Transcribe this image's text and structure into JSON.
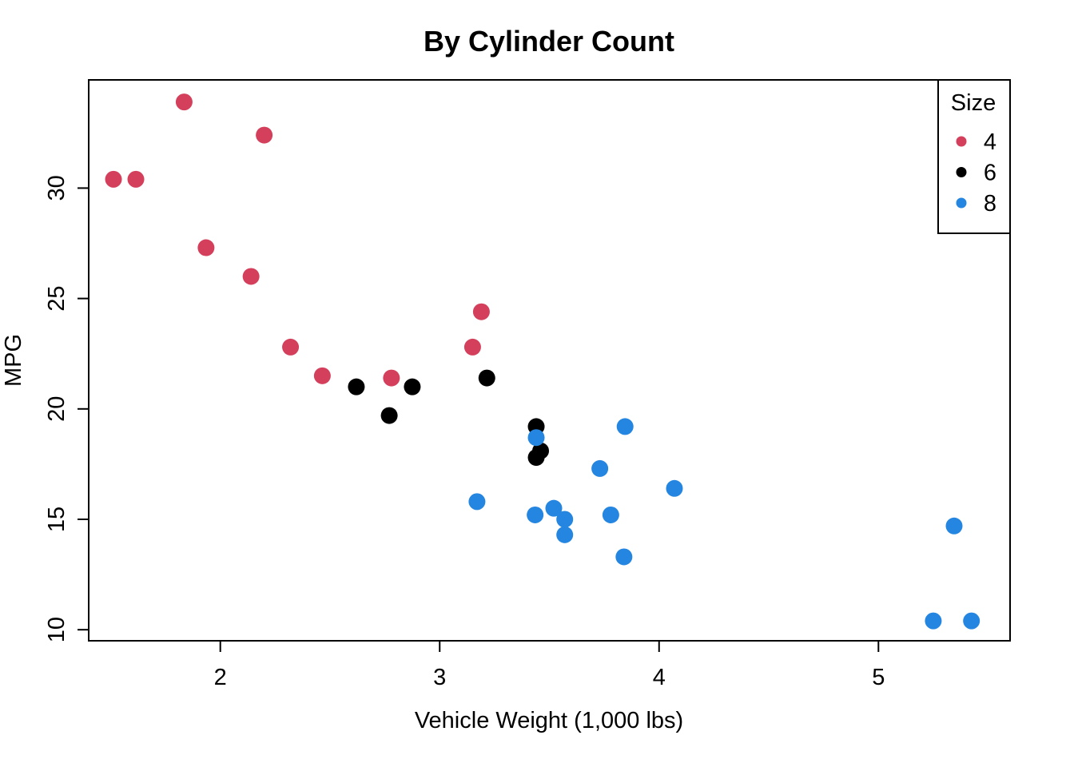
{
  "chart_data": {
    "type": "scatter",
    "title": "By Cylinder Count",
    "xlabel": "Vehicle Weight (1,000 lbs)",
    "ylabel": "MPG",
    "xlim": [
      1.4,
      5.6
    ],
    "ylim": [
      9.5,
      34.9
    ],
    "xticks": [
      "2",
      "3",
      "4",
      "5"
    ],
    "yticks": [
      "10",
      "15",
      "20",
      "25",
      "30"
    ],
    "grid": false,
    "legend": {
      "title": "Size",
      "position": "top-right",
      "entries": [
        "4",
        "6",
        "8"
      ]
    },
    "series": [
      {
        "name": "4",
        "color": "#D43F5B",
        "points": [
          [
            1.513,
            30.4
          ],
          [
            1.615,
            30.4
          ],
          [
            1.835,
            33.9
          ],
          [
            1.935,
            27.3
          ],
          [
            2.2,
            32.4
          ],
          [
            2.14,
            26.0
          ],
          [
            2.32,
            22.8
          ],
          [
            2.465,
            21.5
          ],
          [
            2.78,
            21.4
          ],
          [
            3.15,
            22.8
          ],
          [
            3.19,
            24.4
          ]
        ]
      },
      {
        "name": "6",
        "color": "#000000",
        "points": [
          [
            2.62,
            21.0
          ],
          [
            2.77,
            19.7
          ],
          [
            2.875,
            21.0
          ],
          [
            3.215,
            21.4
          ],
          [
            3.44,
            19.2
          ],
          [
            3.44,
            17.8
          ],
          [
            3.46,
            18.1
          ]
        ]
      },
      {
        "name": "8",
        "color": "#2486E0",
        "points": [
          [
            3.17,
            15.8
          ],
          [
            3.435,
            15.2
          ],
          [
            3.44,
            18.7
          ],
          [
            3.52,
            15.5
          ],
          [
            3.57,
            15.0
          ],
          [
            3.57,
            14.3
          ],
          [
            3.73,
            17.3
          ],
          [
            3.78,
            15.2
          ],
          [
            3.84,
            13.3
          ],
          [
            3.845,
            19.2
          ],
          [
            4.07,
            16.4
          ],
          [
            5.25,
            10.4
          ],
          [
            5.345,
            14.7
          ],
          [
            5.424,
            10.4
          ]
        ]
      }
    ]
  }
}
